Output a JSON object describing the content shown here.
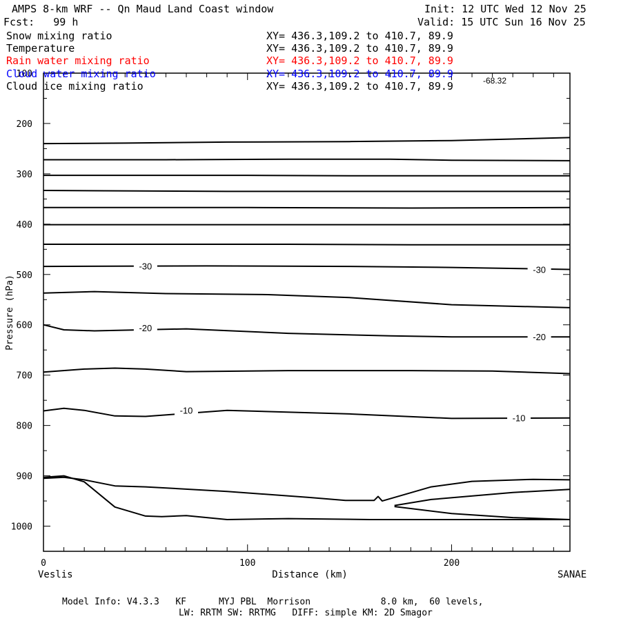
{
  "header": {
    "title": "AMPS 8-km WRF -- Qn Maud Land Coast window",
    "init": "Init: 12 UTC Wed 12 Nov 25",
    "fcst": "Fcst:   99 h",
    "valid": "Valid: 15 UTC Sun 16 Nov 25"
  },
  "fields": [
    {
      "name": "Snow mixing ratio",
      "xy": "XY= 436.3,109.2 to 410.7, 89.9",
      "color": "#000000"
    },
    {
      "name": "Temperature",
      "xy": "XY= 436.3,109.2 to 410.7, 89.9",
      "color": "#000000"
    },
    {
      "name": "Rain water mixing ratio",
      "xy": "XY= 436.3,109.2 to 410.7, 89.9",
      "color": "#ff0000"
    },
    {
      "name": "Cloud water mixing ratio",
      "xy": "XY= 436.3,109.2 to 410.7, 89.9",
      "color": "#0000ff"
    },
    {
      "name": "Cloud ice mixing ratio",
      "xy": "XY= 436.3,109.2 to 410.7, 89.9",
      "color": "#000000"
    }
  ],
  "footer": {
    "line1": "Model Info: V4.3.3   KF      MYJ PBL  Morrison             8.0 km,  60 levels,",
    "line2": "LW: RRTM SW: RRTMG   DIFF: simple KM: 2D Smagor"
  },
  "chart_data": {
    "type": "contour",
    "xlabel": "Distance (km)",
    "ylabel": "Pressure (hPa)",
    "xlim": [
      0,
      258
    ],
    "ylim": [
      1050,
      100
    ],
    "x_ticks": [
      0,
      100,
      200
    ],
    "y_ticks": [
      100,
      200,
      300,
      400,
      500,
      600,
      700,
      800,
      900,
      1000
    ],
    "x_endpoint_labels": {
      "left": "Veslis",
      "right": "SANAE"
    },
    "max_annotation": "-68.32",
    "contours": [
      {
        "level": null,
        "label": "",
        "points": [
          [
            0,
            240
          ],
          [
            40,
            239
          ],
          [
            90,
            237
          ],
          [
            150,
            236
          ],
          [
            200,
            234
          ],
          [
            258,
            228
          ]
        ]
      },
      {
        "level": null,
        "label": "",
        "points": [
          [
            0,
            272
          ],
          [
            60,
            272
          ],
          [
            120,
            271
          ],
          [
            170,
            271
          ],
          [
            200,
            273
          ],
          [
            258,
            274
          ]
        ]
      },
      {
        "level": null,
        "label": "",
        "points": [
          [
            0,
            303
          ],
          [
            100,
            303
          ],
          [
            150,
            304
          ],
          [
            258,
            304
          ]
        ]
      },
      {
        "level": null,
        "label": "",
        "points": [
          [
            0,
            333
          ],
          [
            90,
            335
          ],
          [
            150,
            335
          ],
          [
            258,
            335
          ]
        ]
      },
      {
        "level": null,
        "label": "",
        "points": [
          [
            0,
            367
          ],
          [
            100,
            367
          ],
          [
            180,
            368
          ],
          [
            258,
            367
          ]
        ]
      },
      {
        "level": null,
        "label": "",
        "points": [
          [
            0,
            401
          ],
          [
            100,
            401
          ],
          [
            180,
            401
          ],
          [
            258,
            401
          ]
        ]
      },
      {
        "level": null,
        "label": "",
        "points": [
          [
            0,
            440
          ],
          [
            60,
            440
          ],
          [
            120,
            440
          ],
          [
            180,
            441
          ],
          [
            258,
            441
          ]
        ]
      },
      {
        "level": -30,
        "label": "-30",
        "label_at": [
          50,
          483
        ],
        "points": [
          [
            0,
            484
          ],
          [
            80,
            483
          ],
          [
            150,
            484
          ],
          [
            200,
            486
          ],
          [
            258,
            490
          ]
        ]
      },
      {
        "level": -30,
        "label": "-30",
        "label_at": [
          243,
          490
        ],
        "points": []
      },
      {
        "level": null,
        "label": "",
        "points": [
          [
            0,
            537
          ],
          [
            25,
            534
          ],
          [
            60,
            538
          ],
          [
            110,
            540
          ],
          [
            150,
            546
          ],
          [
            200,
            560
          ],
          [
            258,
            566
          ]
        ]
      },
      {
        "level": -20,
        "label": "-20",
        "label_at": [
          50,
          606
        ],
        "points": [
          [
            0,
            600
          ],
          [
            10,
            610
          ],
          [
            25,
            612
          ],
          [
            70,
            608
          ],
          [
            120,
            617
          ],
          [
            170,
            622
          ],
          [
            200,
            624
          ],
          [
            258,
            624
          ]
        ]
      },
      {
        "level": -20,
        "label": "-20",
        "label_at": [
          243,
          624
        ],
        "points": []
      },
      {
        "level": null,
        "label": "",
        "points": [
          [
            0,
            694
          ],
          [
            20,
            688
          ],
          [
            35,
            686
          ],
          [
            50,
            688
          ],
          [
            70,
            693
          ],
          [
            120,
            691
          ],
          [
            180,
            691
          ],
          [
            220,
            692
          ],
          [
            258,
            697
          ]
        ]
      },
      {
        "level": -10,
        "label": "-10",
        "label_at": [
          70,
          770
        ],
        "points": [
          [
            0,
            771
          ],
          [
            10,
            766
          ],
          [
            20,
            770
          ],
          [
            35,
            781
          ],
          [
            50,
            782
          ],
          [
            70,
            776
          ],
          [
            90,
            770
          ],
          [
            150,
            777
          ],
          [
            200,
            786
          ],
          [
            258,
            785
          ]
        ]
      },
      {
        "level": -10,
        "label": "-10",
        "label_at": [
          233,
          785
        ],
        "points": []
      },
      {
        "level": null,
        "label": "",
        "points": [
          [
            0,
            905
          ],
          [
            10,
            903
          ],
          [
            20,
            908
          ],
          [
            35,
            920
          ],
          [
            50,
            922
          ],
          [
            90,
            931
          ],
          [
            130,
            943
          ],
          [
            148,
            949
          ],
          [
            162,
            949
          ],
          [
            164,
            941
          ],
          [
            166,
            950
          ],
          [
            178,
            936
          ],
          [
            190,
            922
          ],
          [
            210,
            911
          ],
          [
            240,
            907
          ],
          [
            258,
            908
          ]
        ]
      },
      {
        "level": null,
        "label": "",
        "points": [
          [
            0,
            903
          ],
          [
            10,
            900
          ],
          [
            20,
            912
          ],
          [
            35,
            962
          ],
          [
            50,
            980
          ],
          [
            58,
            981
          ],
          [
            70,
            979
          ],
          [
            90,
            987
          ],
          [
            120,
            985
          ],
          [
            160,
            987
          ],
          [
            200,
            987
          ],
          [
            240,
            987
          ],
          [
            258,
            987
          ]
        ]
      },
      {
        "level": null,
        "label": "",
        "points": [
          [
            172,
            959
          ],
          [
            190,
            947
          ],
          [
            230,
            933
          ],
          [
            258,
            927
          ]
        ]
      },
      {
        "level": null,
        "label": "",
        "points": [
          [
            172,
            961
          ],
          [
            200,
            975
          ],
          [
            230,
            983
          ],
          [
            258,
            987
          ]
        ]
      }
    ]
  }
}
